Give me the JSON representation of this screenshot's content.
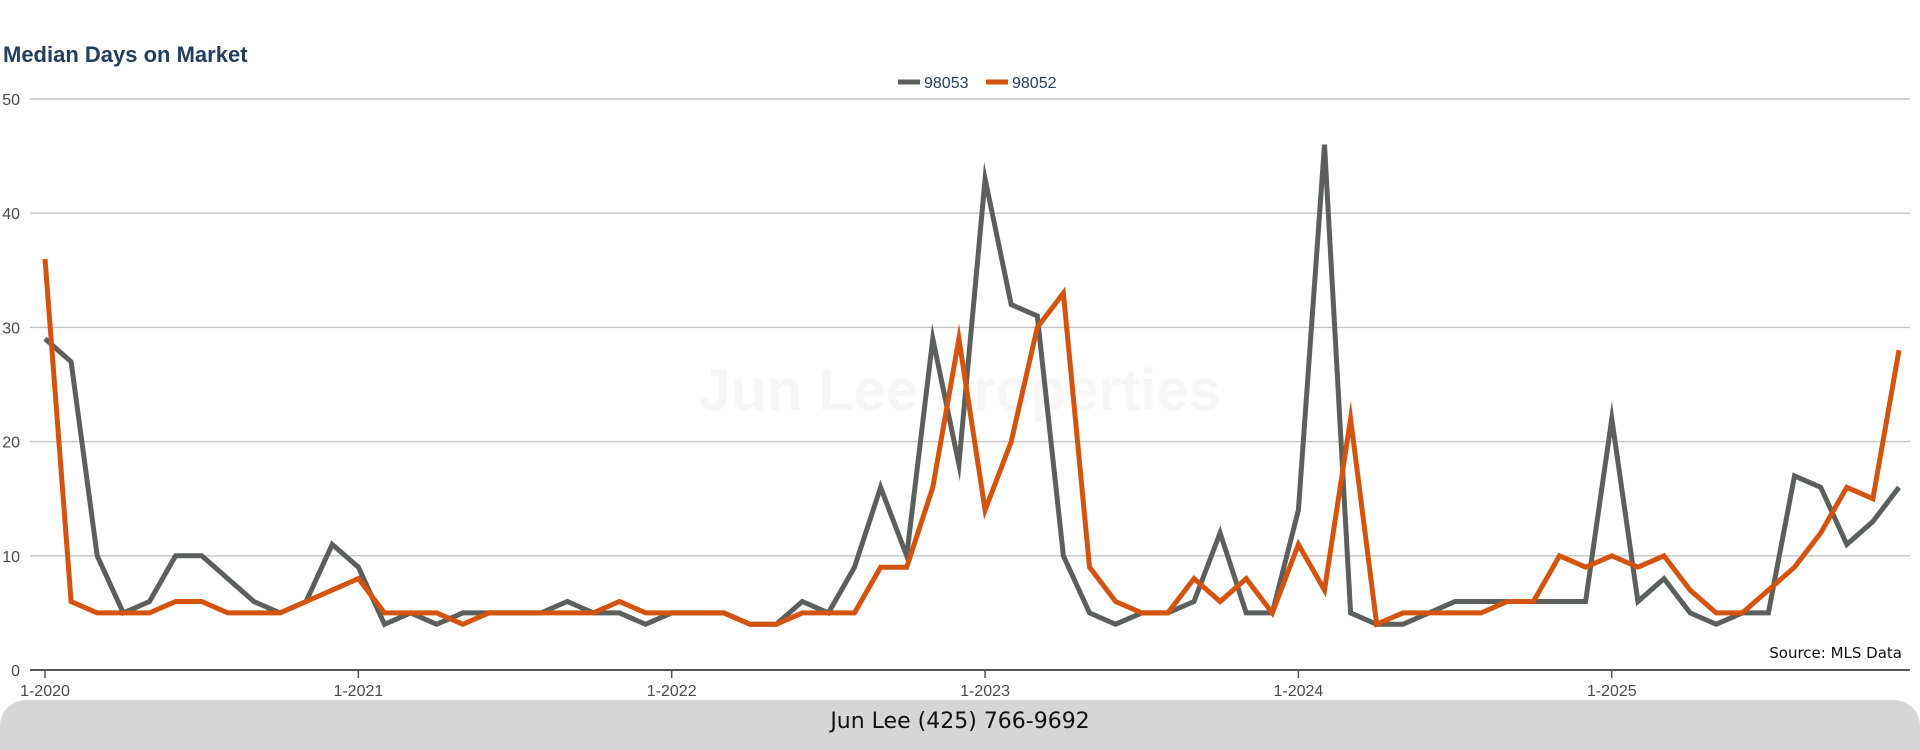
{
  "chart_data": {
    "type": "line",
    "title": "Median Days on Market",
    "ylim": [
      0,
      50
    ],
    "yticks": [
      0,
      10,
      20,
      30,
      40,
      50
    ],
    "xticks": [
      "1-2020",
      "1-2021",
      "1-2022",
      "1-2023",
      "1-2024",
      "1-2025"
    ],
    "x_start": "2020-01",
    "x_end": "2025-10",
    "grid": true,
    "legend_position": "top-center",
    "source": "Source: MLS Data",
    "watermark": "Jun Lee Properties",
    "series": [
      {
        "name": "98053",
        "color": "#5b605d",
        "values": [
          29,
          27,
          10,
          5,
          6,
          10,
          10,
          8,
          6,
          5,
          6,
          11,
          9,
          4,
          5,
          4,
          5,
          5,
          5,
          5,
          6,
          5,
          5,
          4,
          5,
          5,
          5,
          4,
          4,
          6,
          5,
          9,
          16,
          10,
          29,
          18,
          43,
          32,
          31,
          10,
          5,
          4,
          5,
          5,
          6,
          12,
          5,
          5,
          14,
          46,
          5,
          4,
          4,
          5,
          6,
          6,
          6,
          6,
          6,
          6,
          22,
          6,
          8,
          5,
          4,
          5,
          5,
          17,
          16,
          11,
          13,
          16
        ]
      },
      {
        "name": "98052",
        "color": "#d4530e",
        "values": [
          36,
          6,
          5,
          5,
          5,
          6,
          6,
          5,
          5,
          5,
          6,
          7,
          8,
          5,
          5,
          5,
          4,
          5,
          5,
          5,
          5,
          5,
          6,
          5,
          5,
          5,
          5,
          4,
          4,
          5,
          5,
          5,
          9,
          9,
          16,
          29,
          14,
          20,
          30,
          33,
          9,
          6,
          5,
          5,
          8,
          6,
          8,
          5,
          11,
          7,
          22,
          4,
          5,
          5,
          5,
          5,
          6,
          6,
          10,
          9,
          10,
          9,
          10,
          7,
          5,
          5,
          7,
          9,
          12,
          16,
          15,
          28
        ]
      }
    ]
  },
  "footer": {
    "text": "Jun Lee (425) 766-9692"
  }
}
